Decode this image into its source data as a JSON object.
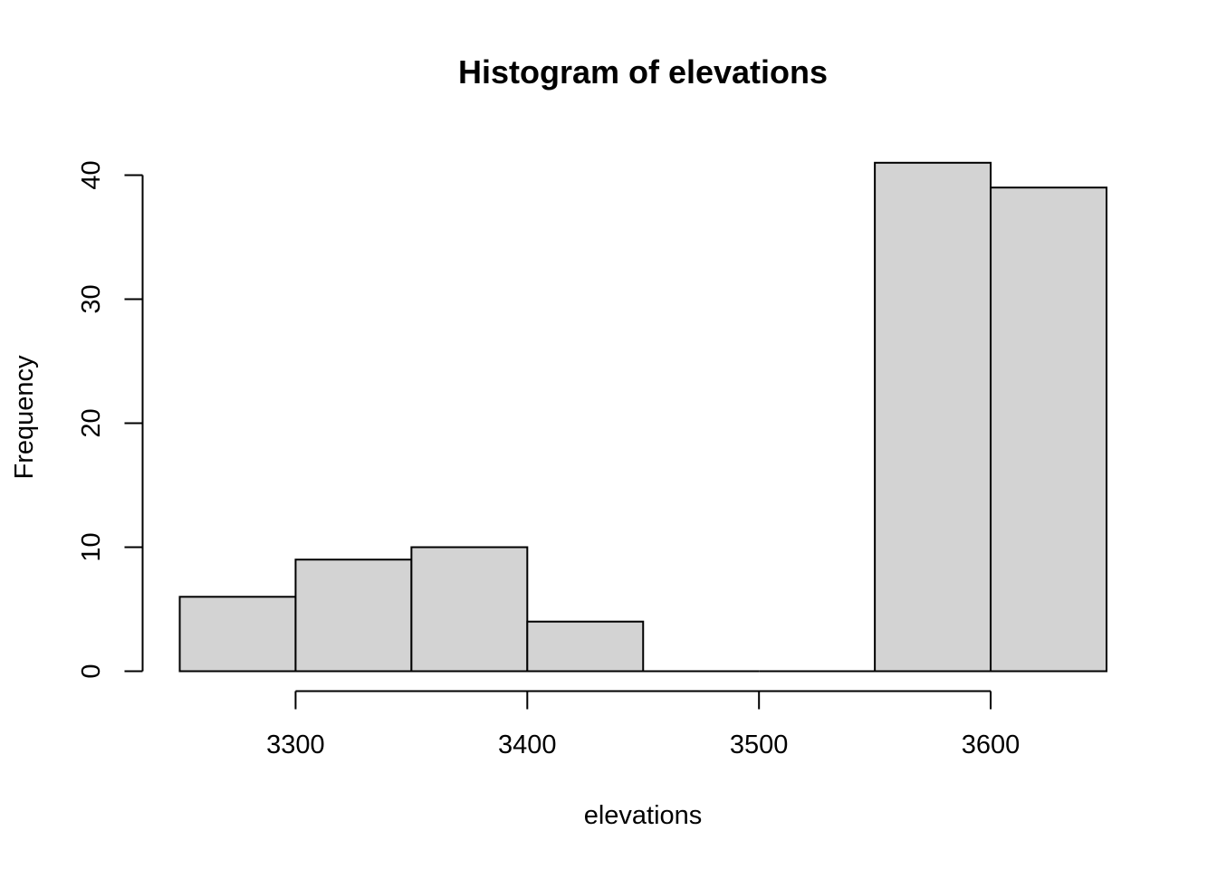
{
  "chart_data": {
    "type": "bar",
    "title": "Histogram of elevations",
    "xlabel": "elevations",
    "ylabel": "Frequency",
    "bins": [
      {
        "start": 3250,
        "end": 3300,
        "count": 6
      },
      {
        "start": 3300,
        "end": 3350,
        "count": 9
      },
      {
        "start": 3350,
        "end": 3400,
        "count": 10
      },
      {
        "start": 3400,
        "end": 3450,
        "count": 4
      },
      {
        "start": 3450,
        "end": 3500,
        "count": 0
      },
      {
        "start": 3500,
        "end": 3550,
        "count": 0
      },
      {
        "start": 3550,
        "end": 3600,
        "count": 41
      },
      {
        "start": 3600,
        "end": 3650,
        "count": 39
      }
    ],
    "xticks": [
      3300,
      3400,
      3500,
      3600
    ],
    "yticks": [
      0,
      10,
      20,
      30,
      40
    ],
    "xlim": [
      3250,
      3650
    ],
    "ylim": [
      0,
      41
    ],
    "colors": {
      "bar_fill": "#d3d3d3",
      "bar_stroke": "#000000"
    }
  }
}
